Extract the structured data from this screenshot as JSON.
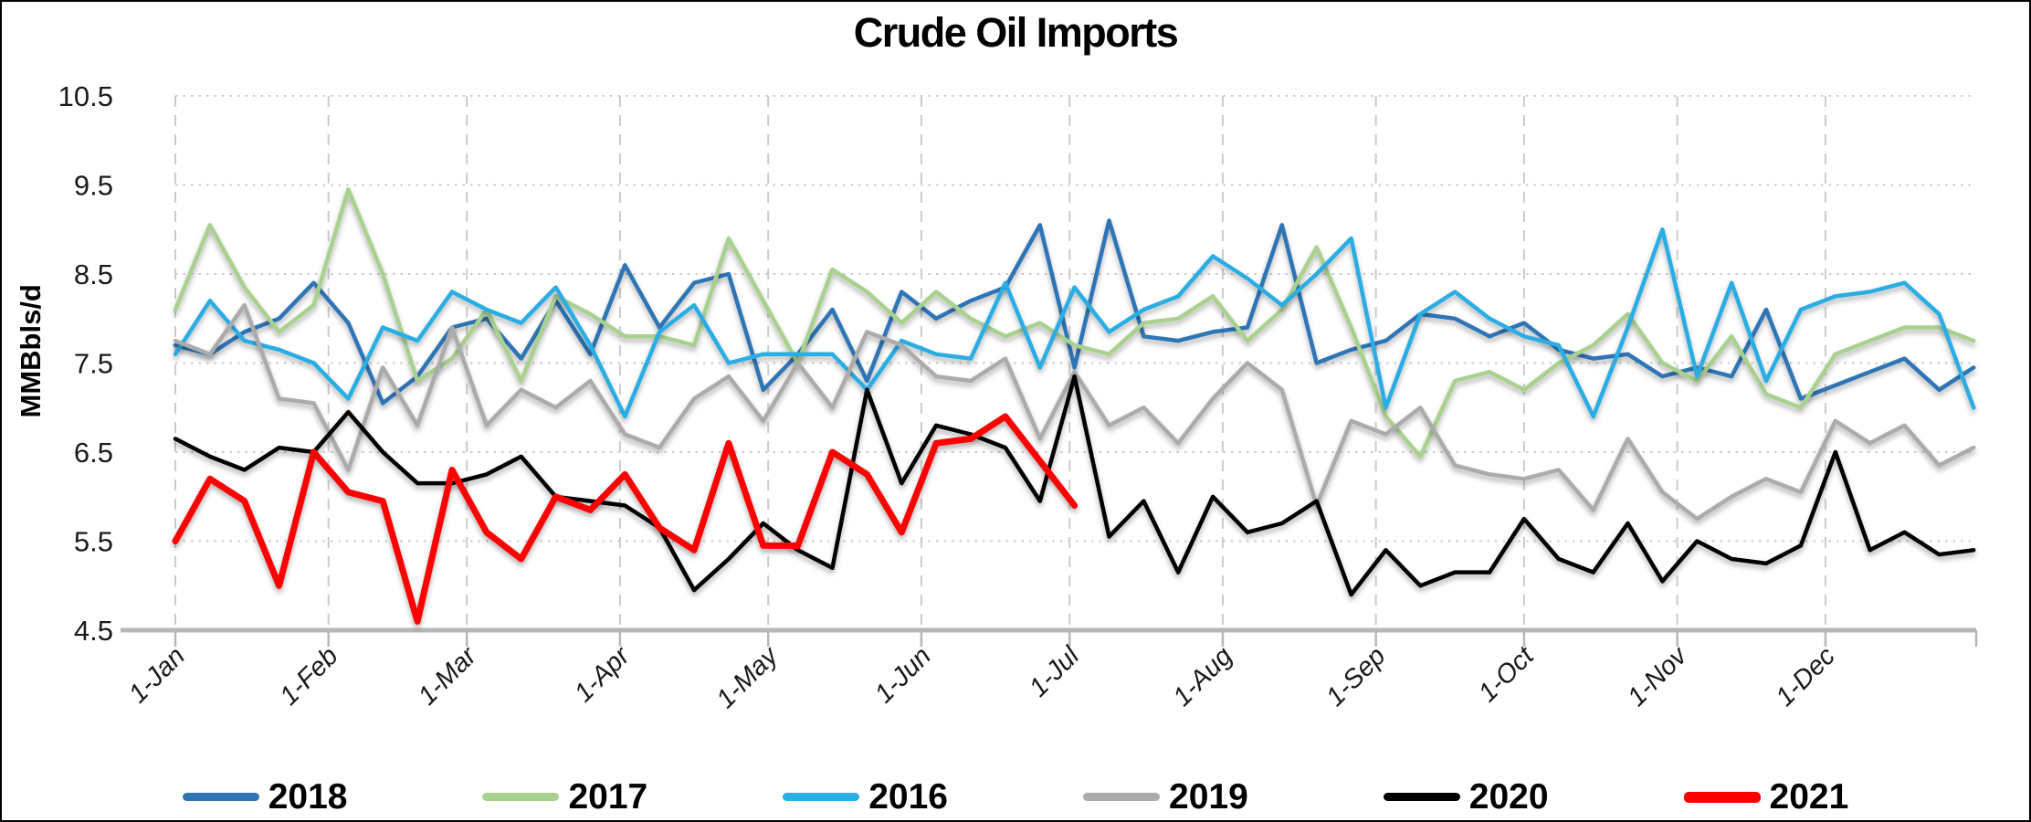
{
  "title": "Crude Oil Imports",
  "chart_data": {
    "type": "line",
    "title": "Crude Oil Imports",
    "xlabel": "",
    "ylabel": "MMBbls/d",
    "ylim": [
      4.5,
      10.5
    ],
    "y_ticks": [
      10.5,
      9.5,
      8.5,
      7.5,
      6.5,
      5.5,
      4.5
    ],
    "x_unit": "weekly (7-day steps starting 1-Jan)",
    "x_tick_labels": [
      "1-Jan",
      "1-Feb",
      "1-Mar",
      "1-Apr",
      "1-May",
      "1-Jun",
      "1-Jul",
      "1-Aug",
      "1-Sep",
      "1-Oct",
      "1-Nov",
      "1-Dec"
    ],
    "month_day_offsets": [
      0,
      31,
      59,
      90,
      120,
      151,
      181,
      212,
      243,
      273,
      304,
      334
    ],
    "grid": true,
    "legend_position": "bottom",
    "axis_color": "#b7b7b7",
    "gridline_color": "#cbcbcb",
    "text_color": "#1a1a1a",
    "series": [
      {
        "name": "2018",
        "color": "#2E75B6",
        "width": 4.5,
        "values": [
          7.7,
          7.6,
          7.85,
          8.0,
          8.4,
          7.95,
          7.05,
          7.35,
          7.9,
          8.0,
          7.55,
          8.2,
          7.6,
          8.6,
          7.9,
          8.4,
          8.5,
          7.2,
          7.6,
          8.1,
          7.3,
          8.3,
          8.0,
          8.2,
          8.35,
          9.05,
          7.45,
          9.1,
          7.8,
          7.75,
          7.85,
          7.9,
          9.05,
          7.5,
          7.65,
          7.75,
          8.05,
          8.0,
          7.8,
          7.95,
          7.65,
          7.55,
          7.6,
          7.35,
          7.45,
          7.35,
          8.1,
          7.1,
          7.25,
          7.4,
          7.55,
          7.2,
          7.45
        ]
      },
      {
        "name": "2017",
        "color": "#A9D18E",
        "width": 4.5,
        "values": [
          8.1,
          9.05,
          8.35,
          7.85,
          8.15,
          9.45,
          8.5,
          7.3,
          7.55,
          8.1,
          7.3,
          8.25,
          8.05,
          7.8,
          7.8,
          7.7,
          8.9,
          8.2,
          7.5,
          8.55,
          8.3,
          7.95,
          8.3,
          8.0,
          7.8,
          7.95,
          7.7,
          7.6,
          7.95,
          8.0,
          8.25,
          7.75,
          8.1,
          8.8,
          7.9,
          6.9,
          6.45,
          7.3,
          7.4,
          7.2,
          7.5,
          7.7,
          8.05,
          7.5,
          7.3,
          7.8,
          7.15,
          7.0,
          7.6,
          7.75,
          7.9,
          7.9,
          7.75
        ]
      },
      {
        "name": "2016",
        "color": "#29ADE3",
        "width": 4.5,
        "values": [
          7.6,
          8.2,
          7.75,
          7.65,
          7.5,
          7.1,
          7.9,
          7.75,
          8.3,
          8.1,
          7.95,
          8.35,
          7.7,
          6.9,
          7.85,
          8.15,
          7.5,
          7.6,
          7.6,
          7.6,
          7.2,
          7.75,
          7.6,
          7.55,
          8.4,
          7.45,
          8.35,
          7.85,
          8.1,
          8.25,
          8.7,
          8.45,
          8.15,
          8.5,
          8.9,
          7.0,
          8.05,
          8.3,
          8.0,
          7.8,
          7.7,
          6.9,
          7.9,
          9.0,
          7.35,
          8.4,
          7.3,
          8.1,
          8.25,
          8.3,
          8.4,
          8.05,
          7.0
        ]
      },
      {
        "name": "2019",
        "color": "#ABABAB",
        "width": 4.5,
        "values": [
          7.75,
          7.6,
          8.15,
          7.1,
          7.05,
          6.3,
          7.45,
          6.8,
          7.9,
          6.8,
          7.2,
          7.0,
          7.3,
          6.7,
          6.55,
          7.1,
          7.35,
          6.85,
          7.5,
          7.0,
          7.85,
          7.7,
          7.35,
          7.3,
          7.55,
          6.65,
          7.4,
          6.8,
          7.0,
          6.6,
          7.1,
          7.5,
          7.2,
          5.9,
          6.85,
          6.7,
          7.0,
          6.35,
          6.25,
          6.2,
          6.3,
          5.85,
          6.65,
          6.05,
          5.75,
          6.0,
          6.2,
          6.05,
          6.85,
          6.6,
          6.8,
          6.35,
          6.55
        ]
      },
      {
        "name": "2020",
        "color": "#000000",
        "width": 4.5,
        "values": [
          6.65,
          6.45,
          6.3,
          6.55,
          6.5,
          6.95,
          6.5,
          6.15,
          6.15,
          6.25,
          6.45,
          6.0,
          5.95,
          5.9,
          5.65,
          4.95,
          5.3,
          5.7,
          5.4,
          5.2,
          7.2,
          6.15,
          6.8,
          6.7,
          6.55,
          5.95,
          7.35,
          5.55,
          5.95,
          5.15,
          6.0,
          5.6,
          5.7,
          5.95,
          4.9,
          5.4,
          5.0,
          5.15,
          5.15,
          5.75,
          5.3,
          5.15,
          5.7,
          5.05,
          5.5,
          5.3,
          5.25,
          5.45,
          6.5,
          5.4,
          5.6,
          5.35,
          5.4
        ]
      },
      {
        "name": "2021",
        "color": "#FE0000",
        "width": 7,
        "values": [
          5.5,
          6.2,
          5.95,
          5.0,
          6.5,
          6.05,
          5.95,
          4.6,
          6.3,
          5.6,
          5.3,
          6.0,
          5.85,
          6.25,
          5.65,
          5.4,
          6.6,
          5.45,
          5.45,
          6.5,
          6.25,
          5.6,
          6.6,
          6.65,
          6.9,
          6.4,
          5.9
        ]
      }
    ]
  },
  "legend": {
    "items": [
      "2018",
      "2017",
      "2016",
      "2019",
      "2020",
      "2021"
    ]
  }
}
